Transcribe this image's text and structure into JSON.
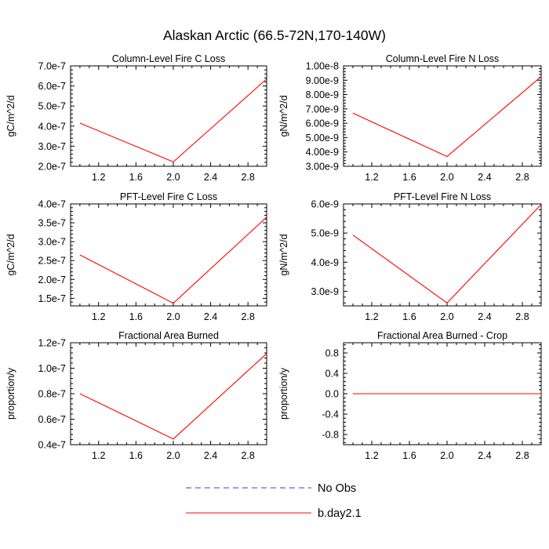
{
  "figure_title": "Alaskan Arctic (66.5-72N,170-140W)",
  "colors": {
    "series": "#ff0000",
    "no_obs": "#3b3bc4",
    "axis": "#000000"
  },
  "legend": {
    "entries": [
      {
        "label": "No Obs",
        "style": "dashed"
      },
      {
        "label": "b.day2.1",
        "style": "solid"
      }
    ]
  },
  "chart_data": [
    {
      "type": "line",
      "title": "Column-Level Fire C Loss",
      "xlabel": "",
      "ylabel": "gC/m^2/d",
      "xlim": [
        0.9,
        3.0
      ],
      "ylim": [
        2e-07,
        7e-07
      ],
      "xticks": [
        1.2,
        1.6,
        2.0,
        2.4,
        2.8
      ],
      "xtick_labels": [
        "1.2",
        "1.6",
        "2.0",
        "2.4",
        "2.8"
      ],
      "yticks": [
        2e-07,
        3e-07,
        4e-07,
        5e-07,
        6e-07,
        7e-07
      ],
      "ytick_labels": [
        "2.0e-7",
        "3.0e-7",
        "4.0e-7",
        "5.0e-7",
        "6.0e-7",
        "7.0e-7"
      ],
      "series": [
        {
          "name": "b.day2.1",
          "x": [
            1.0,
            2.0,
            3.0
          ],
          "y": [
            4.15e-07,
            2.22e-07,
            6.35e-07
          ]
        }
      ]
    },
    {
      "type": "line",
      "title": "Column-Level Fire N Loss",
      "xlabel": "",
      "ylabel": "gN/m^2/d",
      "xlim": [
        0.9,
        3.0
      ],
      "ylim": [
        3e-09,
        1e-08
      ],
      "xticks": [
        1.2,
        1.6,
        2.0,
        2.4,
        2.8
      ],
      "xtick_labels": [
        "1.2",
        "1.6",
        "2.0",
        "2.4",
        "2.8"
      ],
      "yticks": [
        3e-09,
        4e-09,
        5e-09,
        6e-09,
        7e-09,
        8e-09,
        9e-09,
        1e-08
      ],
      "ytick_labels": [
        "3.00e-9",
        "4.00e-9",
        "5.00e-9",
        "6.00e-9",
        "7.00e-9",
        "8.00e-9",
        "9.00e-9",
        "1.00e-8"
      ],
      "series": [
        {
          "name": "b.day2.1",
          "x": [
            1.0,
            2.0,
            3.0
          ],
          "y": [
            6.7e-09,
            3.68e-09,
            9.25e-09
          ]
        }
      ]
    },
    {
      "type": "line",
      "title": "PFT-Level Fire C Loss",
      "xlabel": "",
      "ylabel": "gC/m^2/d",
      "xlim": [
        0.9,
        3.0
      ],
      "ylim": [
        1.3e-07,
        4e-07
      ],
      "xticks": [
        1.2,
        1.6,
        2.0,
        2.4,
        2.8
      ],
      "xtick_labels": [
        "1.2",
        "1.6",
        "2.0",
        "2.4",
        "2.8"
      ],
      "yticks": [
        1.5e-07,
        2e-07,
        2.5e-07,
        3e-07,
        3.5e-07,
        4e-07
      ],
      "ytick_labels": [
        "1.5e-7",
        "2.0e-7",
        "2.5e-7",
        "3.0e-7",
        "3.5e-7",
        "4.0e-7"
      ],
      "series": [
        {
          "name": "b.day2.1",
          "x": [
            1.0,
            2.0,
            3.0
          ],
          "y": [
            2.65e-07,
            1.37e-07,
            3.65e-07
          ]
        }
      ]
    },
    {
      "type": "line",
      "title": "PFT-Level Fire N Loss",
      "xlabel": "",
      "ylabel": "gN/m^2/d",
      "xlim": [
        0.9,
        3.0
      ],
      "ylim": [
        2.5e-09,
        6e-09
      ],
      "xticks": [
        1.2,
        1.6,
        2.0,
        2.4,
        2.8
      ],
      "xtick_labels": [
        "1.2",
        "1.6",
        "2.0",
        "2.4",
        "2.8"
      ],
      "yticks": [
        3e-09,
        4e-09,
        5e-09,
        6e-09
      ],
      "ytick_labels": [
        "3.0e-9",
        "4.0e-9",
        "5.0e-9",
        "6.0e-9"
      ],
      "series": [
        {
          "name": "b.day2.1",
          "x": [
            1.0,
            2.0,
            3.0
          ],
          "y": [
            4.93e-09,
            2.6e-09,
            5.98e-09
          ]
        }
      ]
    },
    {
      "type": "line",
      "title": "Fractional Area Burned",
      "xlabel": "",
      "ylabel": "proportion/y",
      "xlim": [
        0.9,
        3.0
      ],
      "ylim": [
        4e-08,
        1.2e-07
      ],
      "xticks": [
        1.2,
        1.6,
        2.0,
        2.4,
        2.8
      ],
      "xtick_labels": [
        "1.2",
        "1.6",
        "2.0",
        "2.4",
        "2.8"
      ],
      "yticks": [
        4e-08,
        6e-08,
        8e-08,
        1e-07,
        1.2e-07
      ],
      "ytick_labels": [
        "0.4e-7",
        "0.6e-7",
        "0.8e-7",
        "1.0e-7",
        "1.2e-7"
      ],
      "series": [
        {
          "name": "b.day2.1",
          "x": [
            1.0,
            2.0,
            3.0
          ],
          "y": [
            8e-08,
            4.45e-08,
            1.115e-07
          ]
        }
      ]
    },
    {
      "type": "line",
      "title": "Fractional Area Burned - Crop",
      "xlabel": "",
      "ylabel": "proportion/y",
      "xlim": [
        0.9,
        3.0
      ],
      "ylim": [
        -1.0,
        1.0
      ],
      "xticks": [
        1.2,
        1.6,
        2.0,
        2.4,
        2.8
      ],
      "xtick_labels": [
        "1.2",
        "1.6",
        "2.0",
        "2.4",
        "2.8"
      ],
      "yticks": [
        -0.8,
        -0.4,
        0.0,
        0.4,
        0.8
      ],
      "ytick_labels": [
        "-0.8",
        "-0.4",
        "0.0",
        "0.4",
        "0.8"
      ],
      "series": [
        {
          "name": "b.day2.1",
          "x": [
            1.0,
            2.0,
            3.0
          ],
          "y": [
            0.0,
            0.0,
            0.0
          ]
        }
      ]
    }
  ]
}
